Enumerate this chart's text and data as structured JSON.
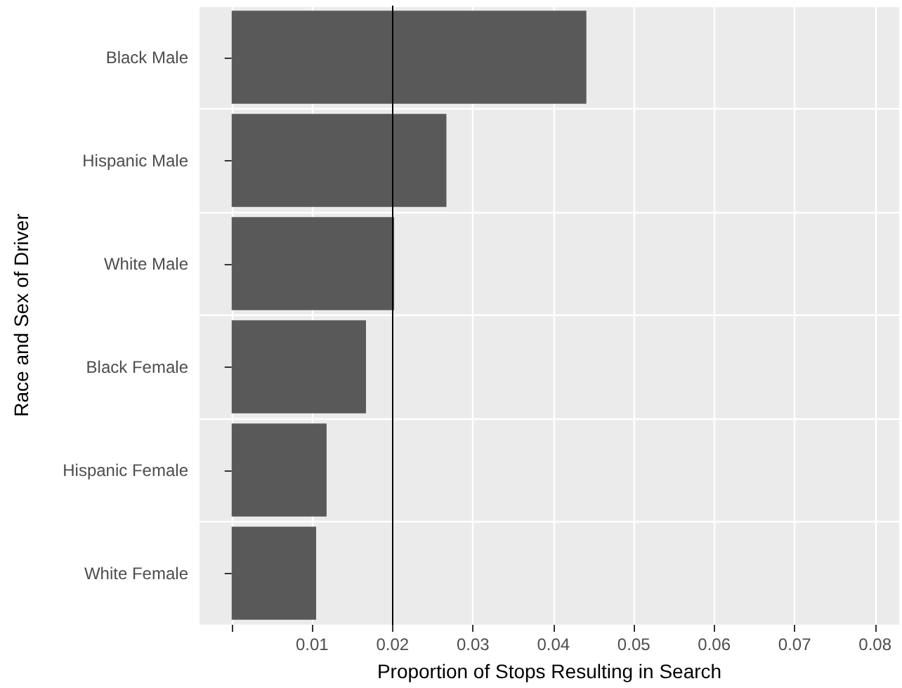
{
  "chart_data": {
    "type": "bar",
    "orientation": "horizontal",
    "xlabel": "Proportion of Stops Resulting in Search",
    "ylabel": "Race and Sex of Driver",
    "categories": [
      "Black Male",
      "Hispanic Male",
      "White Male",
      "Black Female",
      "Hispanic Female",
      "White Female"
    ],
    "values": [
      0.0441,
      0.0267,
      0.0202,
      0.0167,
      0.0118,
      0.0105
    ],
    "color": "#595959",
    "xlim": [
      -0.004,
      0.083
    ],
    "xticks": [
      {
        "value": 0,
        "label": null
      },
      0.01,
      0.02,
      0.03,
      0.04,
      0.05,
      0.06,
      0.07,
      0.08
    ],
    "ref_lines": [
      {
        "axis": "x",
        "value": 0.02,
        "color": "#000000"
      }
    ],
    "grid": true
  }
}
